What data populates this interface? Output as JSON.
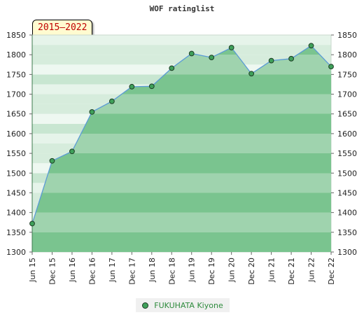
{
  "title": "WOF ratinglist",
  "period_label": "2015–2022",
  "legend": {
    "label": "FUKUHATA Kiyone"
  },
  "colors": {
    "area_light": "#dcefe2",
    "area_dark": "#7ac48f",
    "line": "#5b9bd5",
    "marker": "#3fa05a"
  },
  "chart_data": {
    "type": "area",
    "title": "WOF ratinglist",
    "x": [
      "Jun 15",
      "Dec 15",
      "Jun 16",
      "Dec 16",
      "Jun 17",
      "Dec 17",
      "Jun 18",
      "Dec 18",
      "Jun 19",
      "Dec 19",
      "Jun 20",
      "Dec 20",
      "Jun 21",
      "Dec 21",
      "Jun 22",
      "Dec 22"
    ],
    "series": [
      {
        "name": "FUKUHATA Kiyone",
        "values": [
          1372,
          1531,
          1555,
          1655,
          1682,
          1719,
          1720,
          1766,
          1803,
          1793,
          1818,
          1752,
          1785,
          1790,
          1823,
          1770
        ]
      }
    ],
    "ylim": [
      1300,
      1850
    ],
    "yticks": [
      1300,
      1350,
      1400,
      1450,
      1500,
      1550,
      1600,
      1650,
      1700,
      1750,
      1800,
      1850
    ],
    "grid": true,
    "legend_position": "bottom"
  }
}
